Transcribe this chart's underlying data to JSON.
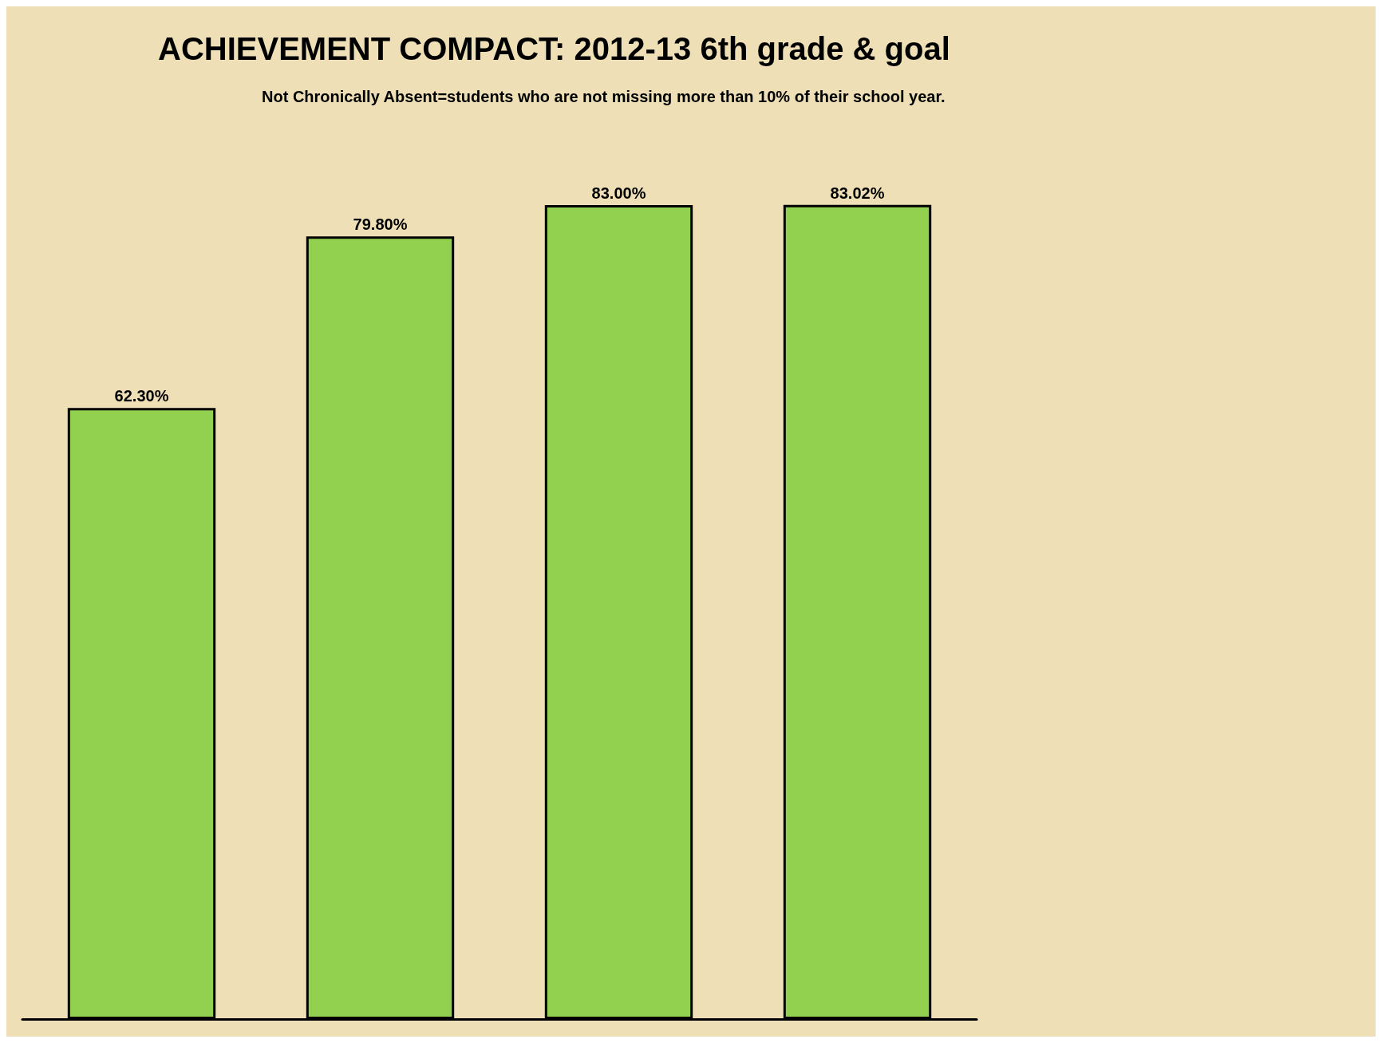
{
  "chart_data": {
    "type": "bar",
    "title": "ACHIEVEMENT COMPACT: 2012-13 6th grade & goal",
    "subtitle": "Not Chronically Absent=students who are not missing more than 10% of their school year.",
    "categories": [
      null,
      null,
      null,
      null
    ],
    "values": [
      62.3,
      79.8,
      83.0,
      83.02
    ],
    "value_labels": [
      "62.30%",
      "79.80%",
      "83.00%",
      "83.02%"
    ],
    "color": "#92d050"
  }
}
